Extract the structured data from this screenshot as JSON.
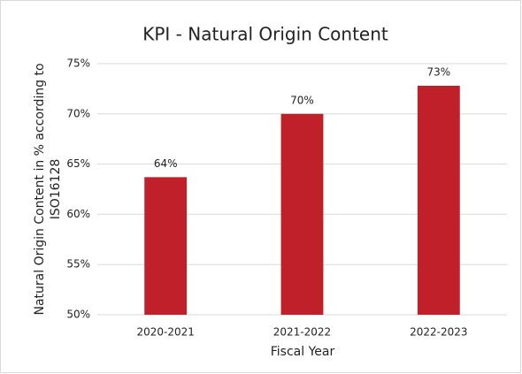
{
  "chart_data": {
    "type": "bar",
    "title": "KPI - Natural Origin Content",
    "x_label": "Fiscal Year",
    "y_label": [
      "Natural Origin Content in % according to",
      "ISO16128"
    ],
    "categories": [
      "2020-2021",
      "2021-2022",
      "2022-2023"
    ],
    "values": [
      63.7,
      70.0,
      72.8
    ],
    "value_labels": [
      "64%",
      "70%",
      "73%"
    ],
    "color": "#c0202a",
    "ylim": [
      50,
      75
    ],
    "yticks": [
      {
        "value": 50,
        "label": "50%"
      },
      {
        "value": 55,
        "label": "55%"
      },
      {
        "value": 60,
        "label": "60%"
      },
      {
        "value": 65,
        "label": "65%"
      },
      {
        "value": 70,
        "label": "70%"
      },
      {
        "value": 75,
        "label": "75%"
      }
    ],
    "grid": true
  }
}
